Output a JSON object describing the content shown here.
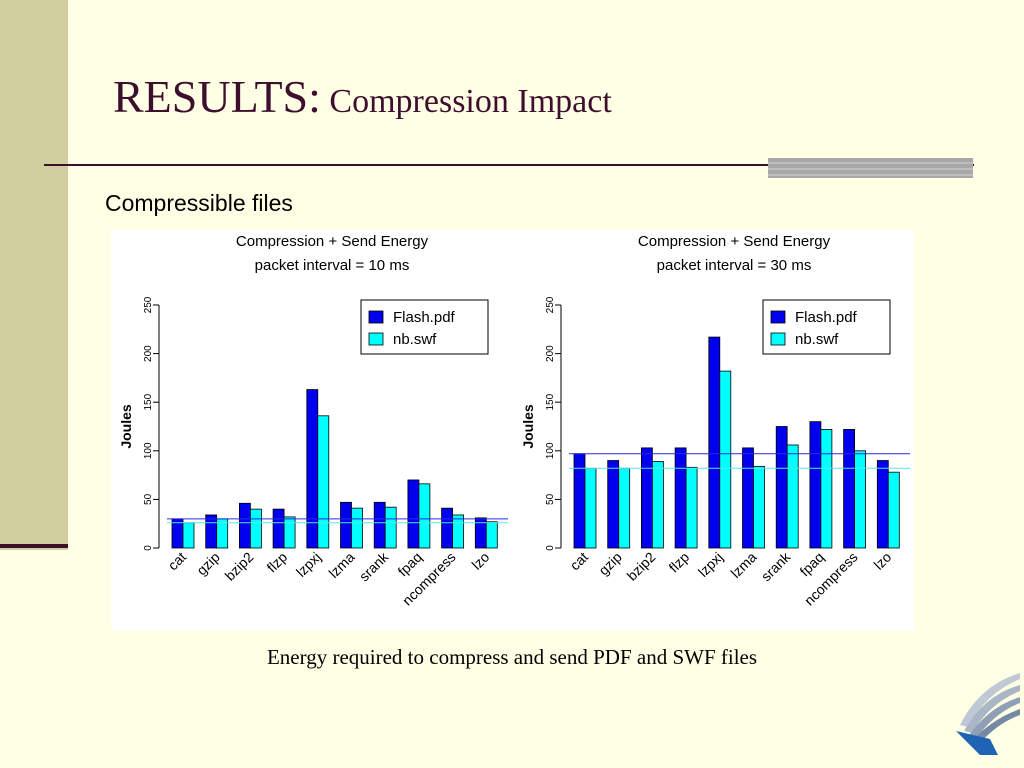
{
  "slide": {
    "title_main": "RESULTS:",
    "title_sub": " Compression Impact",
    "subtitle": "Compressible files",
    "caption": "Energy required to compress and send PDF and SWF files"
  },
  "colors": {
    "pdf": "#0000ee",
    "swf": "#00ffff",
    "title": "#3d0f2d"
  },
  "chart_data": [
    {
      "type": "bar",
      "title": [
        "Compression + Send Energy",
        "packet interval = 10 ms"
      ],
      "ylabel": "Joules",
      "ylim": [
        0,
        250
      ],
      "yticks": [
        0,
        50,
        100,
        150,
        200,
        250
      ],
      "categories": [
        "cat",
        "gzip",
        "bzip2",
        "flzp",
        "lzpxj",
        "lzma",
        "srank",
        "fpaq",
        "ncompress",
        "lzo"
      ],
      "series": [
        {
          "name": "Flash.pdf",
          "values": [
            30,
            34,
            46,
            40,
            163,
            47,
            47,
            70,
            41,
            31
          ]
        },
        {
          "name": "nb.swf",
          "values": [
            26,
            30,
            40,
            32,
            136,
            41,
            42,
            66,
            34,
            27
          ]
        }
      ],
      "hlines": [
        30,
        26
      ],
      "legend": "top-right"
    },
    {
      "type": "bar",
      "title": [
        "Compression + Send Energy",
        "packet interval = 30 ms"
      ],
      "ylabel": "Joules",
      "ylim": [
        0,
        250
      ],
      "yticks": [
        0,
        50,
        100,
        150,
        200,
        250
      ],
      "categories": [
        "cat",
        "gzip",
        "bzip2",
        "flzp",
        "lzpxj",
        "lzma",
        "srank",
        "fpaq",
        "ncompress",
        "lzo"
      ],
      "series": [
        {
          "name": "Flash.pdf",
          "values": [
            97,
            90,
            103,
            103,
            217,
            103,
            125,
            130,
            122,
            90
          ]
        },
        {
          "name": "nb.swf",
          "values": [
            82,
            82,
            89,
            83,
            182,
            84,
            106,
            122,
            100,
            78
          ]
        }
      ],
      "hlines": [
        97,
        82
      ],
      "legend": "top-right"
    }
  ]
}
